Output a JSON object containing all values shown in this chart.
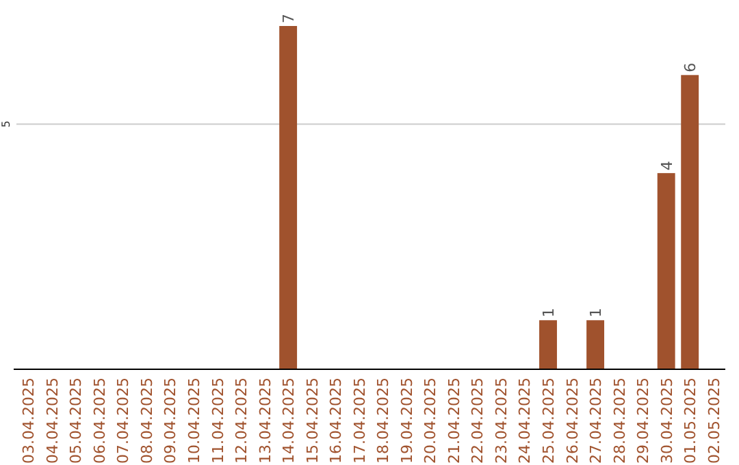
{
  "chart_data": {
    "type": "bar",
    "categories": [
      "03.04.2025",
      "04.04.2025",
      "05.04.2025",
      "06.04.2025",
      "07.04.2025",
      "08.04.2025",
      "09.04.2025",
      "10.04.2025",
      "11.04.2025",
      "12.04.2025",
      "13.04.2025",
      "14.04.2025",
      "15.04.2025",
      "16.04.2025",
      "17.04.2025",
      "18.04.2025",
      "19.04.2025",
      "20.04.2025",
      "21.04.2025",
      "22.04.2025",
      "23.04.2025",
      "24.04.2025",
      "25.04.2025",
      "26.04.2025",
      "27.04.2025",
      "28.04.2025",
      "29.04.2025",
      "30.04.2025",
      "01.05.2025",
      "02.05.2025"
    ],
    "values": [
      0,
      0,
      0,
      0,
      0,
      0,
      0,
      0,
      0,
      0,
      0,
      7,
      0,
      0,
      0,
      0,
      0,
      0,
      0,
      0,
      0,
      0,
      1,
      0,
      1,
      0,
      0,
      4,
      6,
      0
    ],
    "value_labels": [
      null,
      null,
      null,
      null,
      null,
      null,
      null,
      null,
      null,
      null,
      null,
      "7",
      null,
      null,
      null,
      null,
      null,
      null,
      null,
      null,
      null,
      null,
      "1",
      null,
      "1",
      null,
      null,
      "4",
      "6",
      null
    ],
    "color": "#a0522d",
    "ylim": [
      0,
      7
    ],
    "yticks": [
      5
    ],
    "grid": "y"
  }
}
